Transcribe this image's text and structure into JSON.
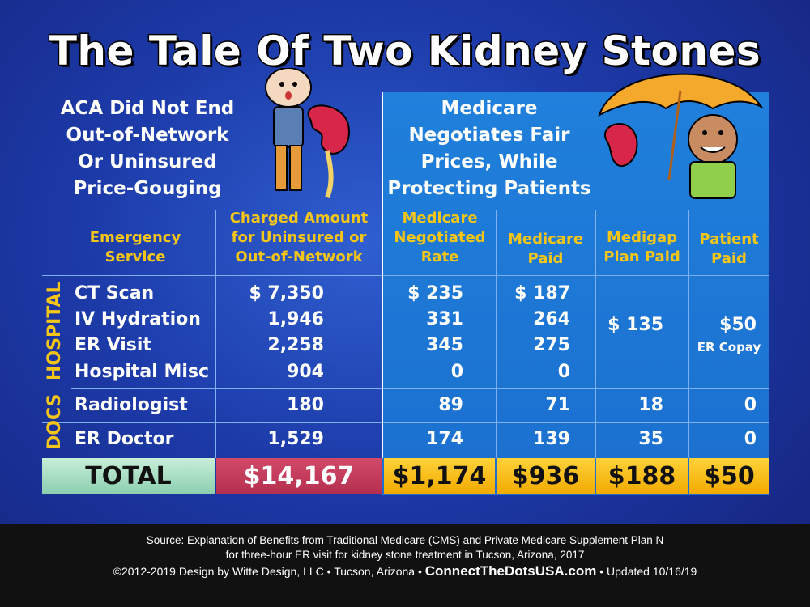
{
  "title": "The Tale Of Two Kidney Stones",
  "left_heading": [
    "ACA Did Not End",
    "Out-of-Network",
    "Or Uninsured",
    "Price-Gouging"
  ],
  "right_heading": [
    "Medicare",
    "Negotiates Fair",
    "Prices, While",
    "Protecting Patients"
  ],
  "columns": {
    "service": [
      "Emergency",
      "Service"
    ],
    "charged": [
      "Charged Amount",
      "for Uninsured or",
      "Out-of-Network"
    ],
    "negotiated": [
      "Medicare",
      "Negotiated",
      "Rate"
    ],
    "paid": [
      "Medicare",
      "Paid"
    ],
    "medigap": [
      "Medigap",
      "Plan Paid"
    ],
    "patient": [
      "Patient",
      "Paid"
    ]
  },
  "group_labels": {
    "hospital": "HOSPITAL",
    "docs": "DOCS"
  },
  "rows": [
    {
      "service": "CT Scan",
      "charged": "$ 7,350",
      "negotiated": "$ 235",
      "paid": "$ 187"
    },
    {
      "service": "IV Hydration",
      "charged": "1,946",
      "negotiated": "331",
      "paid": "264"
    },
    {
      "service": "ER Visit",
      "charged": "2,258",
      "negotiated": "345",
      "paid": "275"
    },
    {
      "service": "Hospital Misc",
      "charged": "904",
      "negotiated": "0",
      "paid": "0"
    },
    {
      "service": "Radiologist",
      "charged": "180",
      "negotiated": "89",
      "paid": "71",
      "medigap": "18",
      "patient": "0"
    },
    {
      "service": "ER Doctor",
      "charged": "1,529",
      "negotiated": "174",
      "paid": "139",
      "medigap": "35",
      "patient": "0"
    }
  ],
  "hospital_medigap": "$ 135",
  "hospital_patient": "$50",
  "hospital_patient_note": "ER Copay",
  "totals": {
    "label": "TOTAL",
    "charged": "$14,167",
    "negotiated": "$1,174",
    "paid": "$936",
    "medigap": "$188",
    "patient": "$50"
  },
  "colors": {
    "background": "#1c3aa8",
    "panel": "#1f7ad8",
    "header_text": "#f5c518",
    "total_label_bg": "#a9dcc0",
    "total_charged_bg": "#c43a5a",
    "total_medicare_bg": "#f5b800"
  },
  "footer": {
    "line1": "Source: Explanation of Benefits from Traditional Medicare (CMS) and Private Medicare Supplement Plan N",
    "line2": "for three-hour ER visit for kidney stone treatment in Tucson, Arizona, 2017",
    "line3_left": "©2012-2019 Design by Witte Design, LLC • Tucson, Arizona •",
    "site": "ConnectTheDotsUSA.com",
    "line3_right": "• Updated 10/16/19"
  }
}
